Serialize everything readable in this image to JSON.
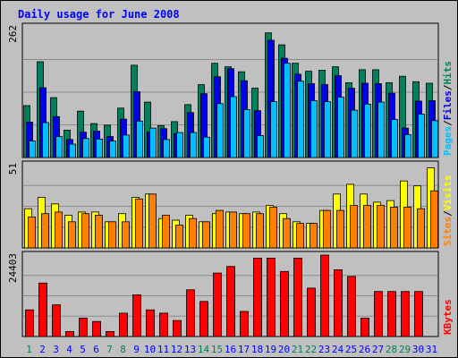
{
  "title": "Daily usage for June 2008",
  "colors": {
    "background": "#c0c0c0",
    "title_text": "#0000ff",
    "hits": "#00805c",
    "files": "#0000e6",
    "pages": "#00c0ff",
    "visits": "#ffff00",
    "sites": "#ff8000",
    "kbytes": "#ff0000",
    "weekend_day": "#00805c",
    "weekday": "#0000ff"
  },
  "chart_data": [
    {
      "type": "bar",
      "title": "Daily usage for June 2008",
      "ymax_label": "262",
      "ylim": [
        0,
        262
      ],
      "legend": [
        {
          "label": "Pages",
          "color": "#00c0ff"
        },
        {
          "label": "/",
          "color": "#000000"
        },
        {
          "label": "Files",
          "color": "#0000e6"
        },
        {
          "label": "/",
          "color": "#000000"
        },
        {
          "label": "Hits",
          "color": "#00805c"
        }
      ],
      "categories": [
        "1",
        "2",
        "3",
        "4",
        "5",
        "6",
        "7",
        "8",
        "9",
        "10",
        "11",
        "12",
        "13",
        "14",
        "15",
        "16",
        "17",
        "18",
        "19",
        "20",
        "21",
        "22",
        "23",
        "24",
        "25",
        "26",
        "27",
        "28",
        "29",
        "30",
        "31"
      ],
      "series": [
        {
          "name": "Hits",
          "values": [
            104,
            192,
            120,
            55,
            93,
            68,
            65,
            99,
            185,
            111,
            64,
            72,
            106,
            146,
            189,
            182,
            172,
            139,
            250,
            226,
            189,
            173,
            175,
            182,
            150,
            176,
            176,
            150,
            163,
            152,
            149
          ]
        },
        {
          "name": "Files",
          "values": [
            71,
            140,
            82,
            36,
            51,
            53,
            42,
            77,
            132,
            51,
            58,
            48,
            90,
            128,
            162,
            178,
            154,
            94,
            235,
            199,
            167,
            148,
            146,
            164,
            139,
            149,
            148,
            129,
            59,
            113,
            114
          ]
        },
        {
          "name": "Pages",
          "values": [
            33,
            70,
            42,
            27,
            38,
            37,
            33,
            45,
            73,
            59,
            36,
            50,
            50,
            41,
            108,
            122,
            96,
            44,
            112,
            189,
            153,
            114,
            112,
            121,
            95,
            107,
            111,
            76,
            46,
            87,
            74
          ]
        }
      ]
    },
    {
      "type": "bar",
      "ymax_label": "51",
      "ylim": [
        0,
        51
      ],
      "legend": [
        {
          "label": "Sites",
          "color": "#ff8000"
        },
        {
          "label": "/",
          "color": "#000000"
        },
        {
          "label": "Visits",
          "color": "#ffff00"
        }
      ],
      "categories": [
        "1",
        "2",
        "3",
        "4",
        "5",
        "6",
        "7",
        "8",
        "9",
        "10",
        "11",
        "12",
        "13",
        "14",
        "15",
        "16",
        "17",
        "18",
        "19",
        "20",
        "21",
        "22",
        "23",
        "24",
        "25",
        "26",
        "27",
        "28",
        "29",
        "30",
        "31"
      ],
      "series": [
        {
          "name": "Visits",
          "values": [
            24,
            31,
            27,
            20,
            22,
            22,
            16,
            21,
            31,
            33,
            18,
            17,
            20,
            16,
            21,
            22,
            21,
            22,
            26,
            21,
            16,
            15,
            23,
            33,
            39,
            33,
            28,
            29,
            41,
            38,
            49
          ]
        },
        {
          "name": "Sites",
          "values": [
            19,
            21,
            22,
            16,
            21,
            20,
            16,
            16,
            30,
            33,
            20,
            14,
            18,
            16,
            23,
            22,
            21,
            21,
            25,
            18,
            15,
            15,
            23,
            23,
            26,
            26,
            26,
            25,
            25,
            24,
            35
          ]
        }
      ]
    },
    {
      "type": "bar",
      "ymax_label": "24403",
      "ylim": [
        0,
        24403
      ],
      "legend": [
        {
          "label": "KBytes",
          "color": "#ff0000"
        }
      ],
      "categories": [
        "1",
        "2",
        "3",
        "4",
        "5",
        "6",
        "7",
        "8",
        "9",
        "10",
        "11",
        "12",
        "13",
        "14",
        "15",
        "16",
        "17",
        "18",
        "19",
        "20",
        "21",
        "22",
        "23",
        "24",
        "25",
        "26",
        "27",
        "28",
        "29",
        "30",
        "31"
      ],
      "series": [
        {
          "name": "KBytes",
          "values": [
            8000,
            16000,
            9500,
            1500,
            5500,
            4500,
            1500,
            7000,
            12500,
            8000,
            7000,
            4800,
            14000,
            10500,
            19000,
            21000,
            7500,
            23500,
            23500,
            19500,
            23500,
            14500,
            24403,
            20000,
            18000,
            5500,
            13500,
            13500,
            13500,
            13500,
            0
          ]
        }
      ]
    }
  ],
  "days": [
    "1",
    "2",
    "3",
    "4",
    "5",
    "6",
    "7",
    "8",
    "9",
    "10",
    "11",
    "12",
    "13",
    "14",
    "15",
    "16",
    "17",
    "18",
    "19",
    "20",
    "21",
    "22",
    "23",
    "24",
    "25",
    "26",
    "27",
    "28",
    "29",
    "30",
    "31"
  ],
  "weekend_days": [
    "1",
    "7",
    "8",
    "14",
    "15",
    "21",
    "22",
    "28",
    "29"
  ]
}
